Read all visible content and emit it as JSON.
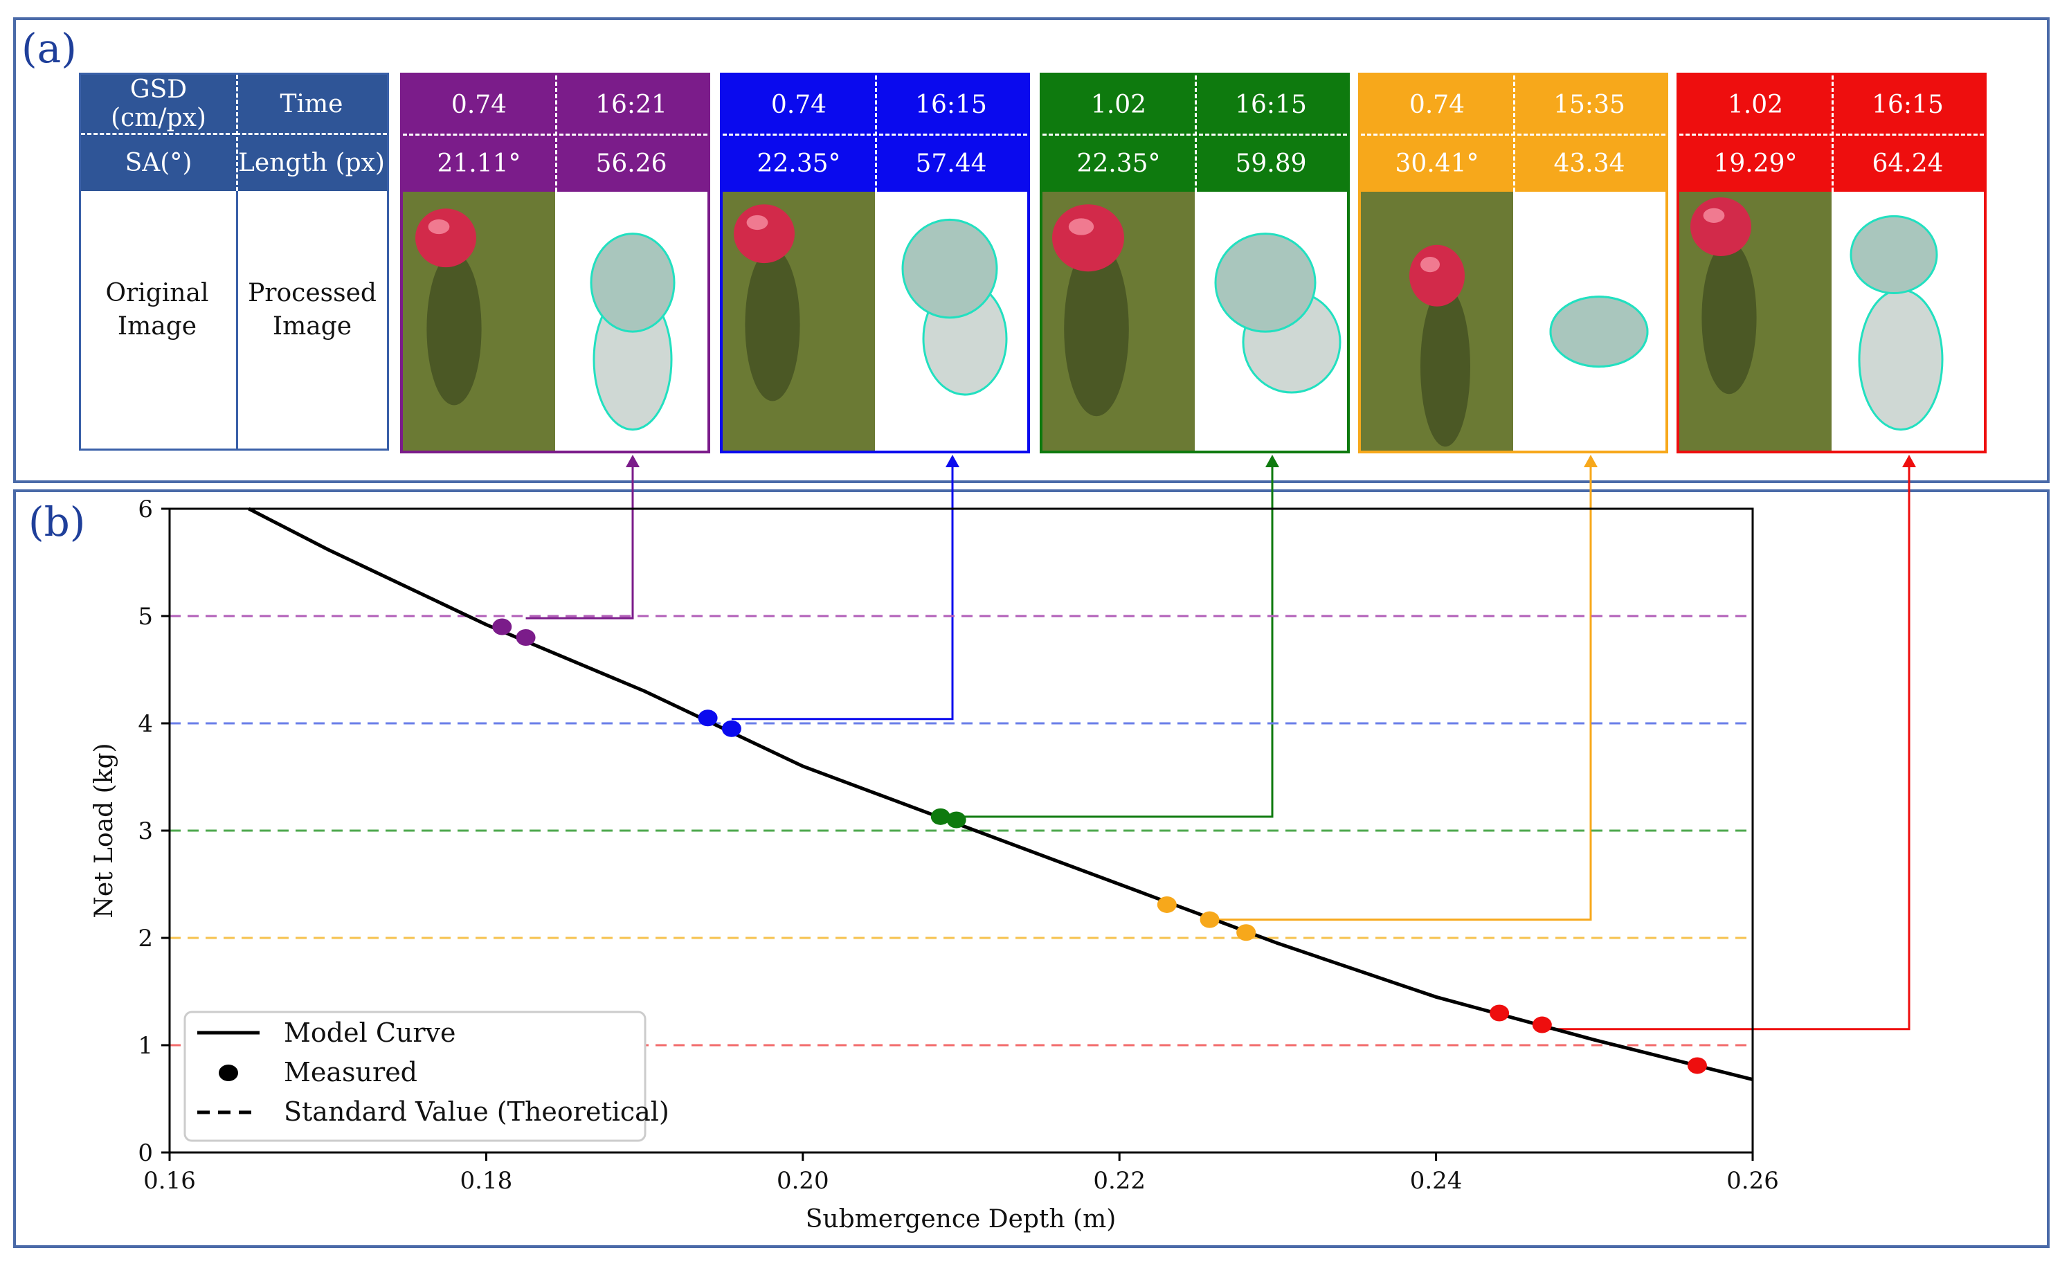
{
  "panel_labels": {
    "a": "(a)",
    "b": "(b)"
  },
  "header": {
    "gsd": "GSD (cm/px)",
    "time": "Time",
    "sa": "SA(°)",
    "length": "Length (px)",
    "original": "Original Image",
    "processed": "Processed Image"
  },
  "cards": [
    {
      "color": "#7b1c8a",
      "gsd": "0.74",
      "time": "16:21",
      "sa": "21.11°",
      "length": "56.26"
    },
    {
      "color": "#0a0aee",
      "gsd": "0.74",
      "time": "16:15",
      "sa": "22.35°",
      "length": "57.44"
    },
    {
      "color": "#0e7a0e",
      "gsd": "1.02",
      "time": "16:15",
      "sa": "22.35°",
      "length": "59.89"
    },
    {
      "color": "#f7a81b",
      "gsd": "0.74",
      "time": "15:35",
      "sa": "30.41°",
      "length": "43.34"
    },
    {
      "color": "#ee0e0e",
      "gsd": "1.02",
      "time": "16:15",
      "sa": "19.29°",
      "length": "64.24"
    }
  ],
  "chart_data": {
    "type": "line",
    "title": "",
    "xlabel": "Submergence Depth (m)",
    "ylabel": "Net Load (kg)",
    "xlim": [
      0.16,
      0.26
    ],
    "ylim": [
      0,
      6
    ],
    "x_ticks": [
      "0.16",
      "0.18",
      "0.20",
      "0.22",
      "0.24",
      "0.26"
    ],
    "y_ticks": [
      "0",
      "1",
      "2",
      "3",
      "4",
      "5",
      "6"
    ],
    "model_curve": {
      "name": "Model Curve",
      "x": [
        0.165,
        0.17,
        0.18,
        0.19,
        0.2,
        0.21,
        0.22,
        0.23,
        0.24,
        0.25,
        0.26
      ],
      "y": [
        6.0,
        5.62,
        4.92,
        4.3,
        3.6,
        3.05,
        2.5,
        1.95,
        1.45,
        1.05,
        0.68
      ]
    },
    "standard_values": {
      "name": "Standard Value (Theoretical)",
      "values": [
        5,
        4,
        3,
        2,
        1
      ],
      "colors": [
        "#b25fb8",
        "#6a7ee8",
        "#4ea84e",
        "#f6c24e",
        "#f26b6b"
      ]
    },
    "measured": {
      "name": "Measured",
      "groups": [
        {
          "color": "#7b1c8a",
          "points": [
            [
              0.181,
              4.9
            ],
            [
              0.1825,
              4.8
            ]
          ],
          "card": 0,
          "link": [
            0.1825,
            4.98
          ]
        },
        {
          "color": "#0a0aee",
          "points": [
            [
              0.194,
              4.05
            ],
            [
              0.1955,
              3.95
            ]
          ],
          "card": 1,
          "link": [
            0.1955,
            4.04
          ]
        },
        {
          "color": "#0e7a0e",
          "points": [
            [
              0.2087,
              3.13
            ],
            [
              0.2097,
              3.1
            ]
          ],
          "card": 2,
          "link": [
            0.2097,
            3.13
          ]
        },
        {
          "color": "#f7a81b",
          "points": [
            [
              0.223,
              2.31
            ],
            [
              0.2257,
              2.17
            ],
            [
              0.228,
              2.05
            ]
          ],
          "card": 3,
          "link": [
            0.2257,
            2.17
          ]
        },
        {
          "color": "#ee0e0e",
          "points": [
            [
              0.244,
              1.3
            ],
            [
              0.2467,
              1.19
            ],
            [
              0.2565,
              0.81
            ]
          ],
          "card": 4,
          "link": [
            0.2467,
            1.15
          ]
        }
      ]
    },
    "legend": {
      "position": "bottom-left",
      "entries": [
        "Model Curve",
        "Measured",
        "Standard Value (Theoretical)"
      ]
    }
  }
}
